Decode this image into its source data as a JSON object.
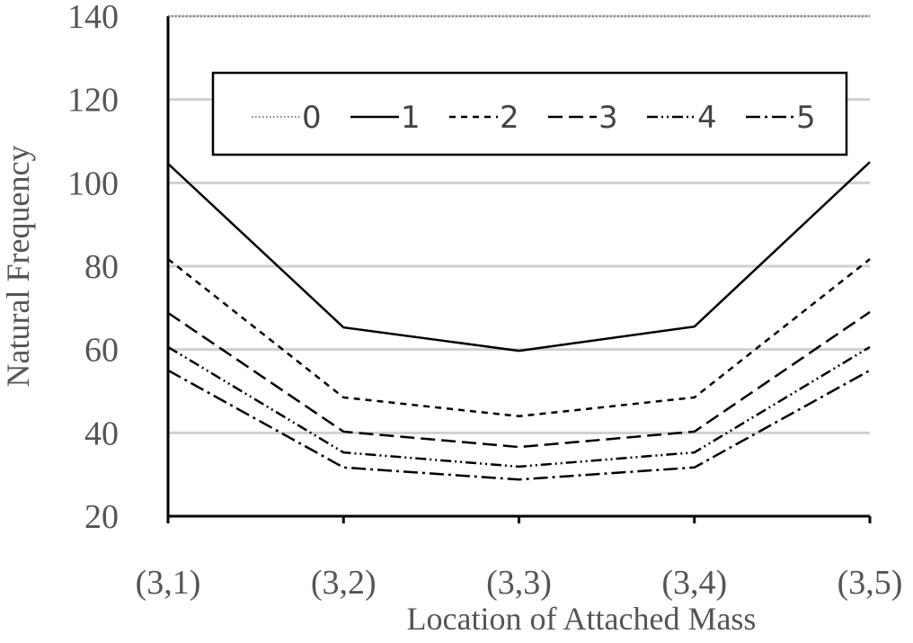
{
  "chart_data": {
    "type": "line",
    "x_label": "Location of Attached Mass",
    "y_label": "Natural Frequency",
    "categories": [
      "(3,1)",
      "(3,2)",
      "(3,3)",
      "(3,4)",
      "(3,5)"
    ],
    "series": [
      {
        "name": "0",
        "color": "#555555",
        "values": [
          140,
          140,
          140,
          140,
          140
        ]
      },
      {
        "name": "1",
        "color": "#000000",
        "values": [
          104.6,
          65.3,
          59.7,
          65.5,
          105
        ]
      },
      {
        "name": "2",
        "color": "#000000",
        "values": [
          81.7,
          48.5,
          44,
          48.5,
          81.7
        ]
      },
      {
        "name": "3",
        "color": "#000000",
        "values": [
          68.8,
          40.3,
          36.6,
          40.3,
          69
        ]
      },
      {
        "name": "4",
        "color": "#000000",
        "values": [
          60.6,
          35.3,
          31.9,
          35.3,
          60.6
        ]
      },
      {
        "name": "5",
        "color": "#000000",
        "values": [
          55,
          31.7,
          28.8,
          31.7,
          55
        ]
      }
    ],
    "ylim": [
      20,
      140
    ],
    "yticks": [
      20,
      40,
      60,
      80,
      100,
      120,
      140
    ],
    "grid": true
  }
}
